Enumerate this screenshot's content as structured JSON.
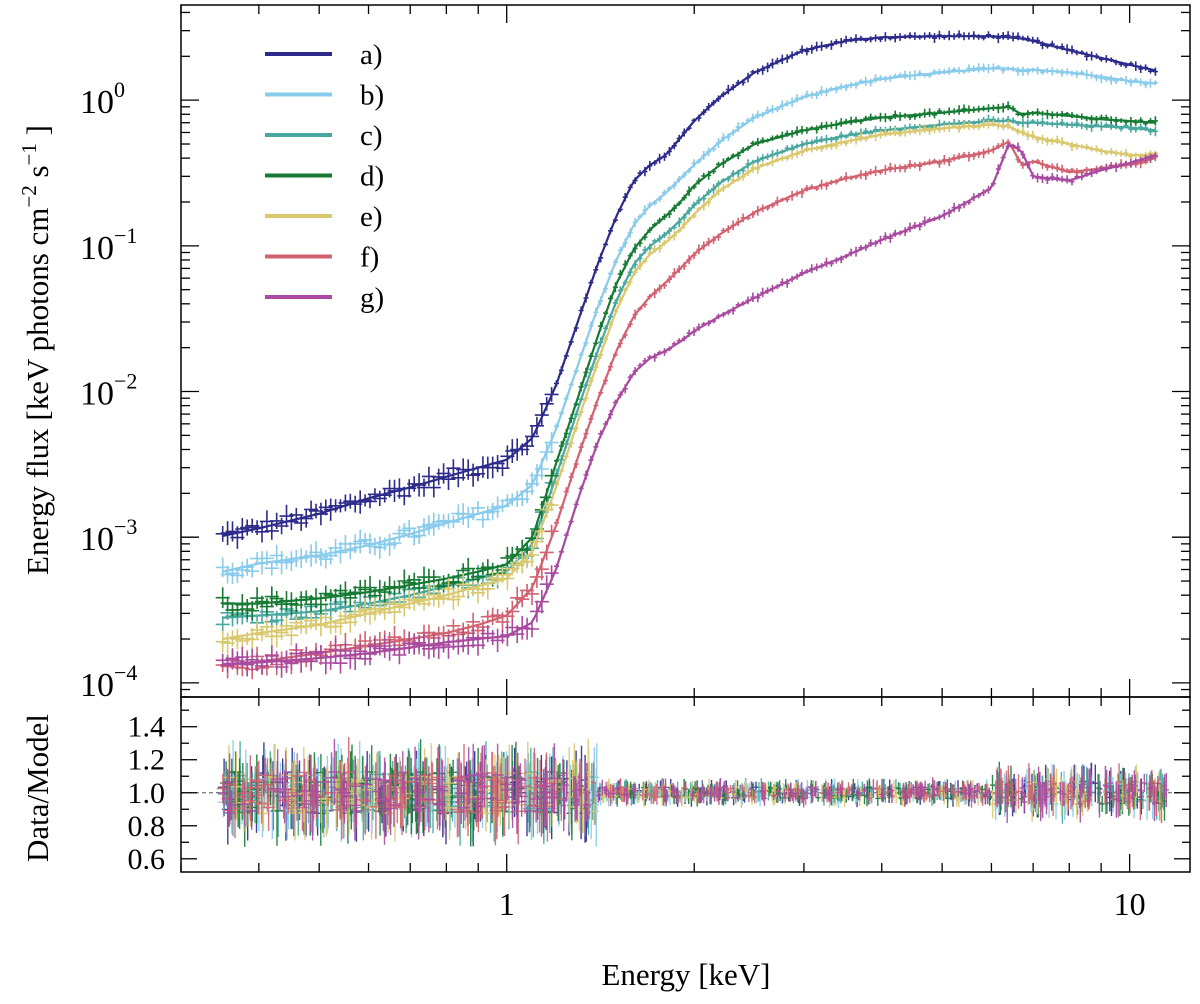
{
  "chart_data": [
    {
      "type": "line",
      "panel": "top",
      "ylabel": "Energy flux [keV photons cm^-2 s^-1 ]",
      "xscale": "log",
      "yscale": "log",
      "xlim": [
        0.3,
        12.5
      ],
      "ylim": [
        8e-05,
        4.5
      ],
      "ytick_labels": [
        {
          "value": 1,
          "mantissa": "10",
          "exponent": "0"
        },
        {
          "value": 0.1,
          "mantissa": "10",
          "exponent": "−1"
        },
        {
          "value": 0.01,
          "mantissa": "10",
          "exponent": "−2"
        },
        {
          "value": 0.001,
          "mantissa": "10",
          "exponent": "−3"
        },
        {
          "value": 0.0001,
          "mantissa": "10",
          "exponent": "−4"
        }
      ],
      "legend_placement": "top-left",
      "x": [
        0.35,
        0.4,
        0.5,
        0.6,
        0.7,
        0.8,
        0.9,
        1.0,
        1.1,
        1.2,
        1.3,
        1.4,
        1.5,
        1.6,
        1.7,
        1.8,
        1.9,
        2.0,
        2.2,
        2.5,
        3.0,
        3.5,
        4.0,
        5.0,
        6.0,
        6.4,
        6.7,
        7.0,
        8.0,
        9.0,
        10.0,
        11.0
      ],
      "series": [
        {
          "name": "a)",
          "color": "#2d2b8a",
          "values": [
            0.00102,
            0.00115,
            0.00145,
            0.00185,
            0.0022,
            0.0026,
            0.003,
            0.0034,
            0.0048,
            0.011,
            0.03,
            0.075,
            0.16,
            0.28,
            0.36,
            0.42,
            0.55,
            0.72,
            1.05,
            1.55,
            2.2,
            2.55,
            2.7,
            2.75,
            2.75,
            2.7,
            2.65,
            2.55,
            2.2,
            1.95,
            1.75,
            1.6
          ]
        },
        {
          "name": "b)",
          "color": "#88cbea",
          "values": [
            0.00058,
            0.00066,
            0.00075,
            0.00088,
            0.00105,
            0.00125,
            0.00145,
            0.00165,
            0.0023,
            0.0055,
            0.015,
            0.038,
            0.08,
            0.14,
            0.19,
            0.23,
            0.29,
            0.36,
            0.52,
            0.76,
            1.05,
            1.25,
            1.4,
            1.55,
            1.65,
            1.65,
            1.6,
            1.62,
            1.55,
            1.45,
            1.35,
            1.3
          ]
        },
        {
          "name": "c)",
          "color": "#48a79f",
          "values": [
            0.00028,
            0.00029,
            0.00031,
            0.00035,
            0.0004,
            0.00046,
            0.00052,
            0.00058,
            0.0009,
            0.0026,
            0.0075,
            0.019,
            0.042,
            0.075,
            0.1,
            0.12,
            0.15,
            0.19,
            0.27,
            0.38,
            0.5,
            0.57,
            0.62,
            0.68,
            0.72,
            0.72,
            0.7,
            0.7,
            0.68,
            0.66,
            0.65,
            0.62
          ]
        },
        {
          "name": "d)",
          "color": "#167a33",
          "values": [
            0.00035,
            0.00035,
            0.00038,
            0.00042,
            0.00047,
            0.00052,
            0.00058,
            0.00065,
            0.001,
            0.0032,
            0.009,
            0.024,
            0.055,
            0.095,
            0.13,
            0.16,
            0.2,
            0.26,
            0.36,
            0.5,
            0.62,
            0.7,
            0.76,
            0.82,
            0.88,
            0.9,
            0.8,
            0.82,
            0.78,
            0.74,
            0.72,
            0.7
          ]
        },
        {
          "name": "e)",
          "color": "#d9c86e",
          "values": [
            0.0002,
            0.00022,
            0.00025,
            0.0003,
            0.00035,
            0.0004,
            0.00046,
            0.00052,
            0.0008,
            0.0022,
            0.0062,
            0.016,
            0.036,
            0.065,
            0.088,
            0.105,
            0.13,
            0.165,
            0.24,
            0.34,
            0.45,
            0.52,
            0.58,
            0.64,
            0.68,
            0.66,
            0.6,
            0.56,
            0.5,
            0.45,
            0.42,
            0.42
          ]
        },
        {
          "name": "f)",
          "color": "#d16270",
          "values": [
            0.00013,
            0.00014,
            0.00016,
            0.00018,
            0.0002,
            0.00022,
            0.00025,
            0.00029,
            0.00045,
            0.0012,
            0.0035,
            0.0088,
            0.019,
            0.033,
            0.045,
            0.056,
            0.07,
            0.088,
            0.12,
            0.17,
            0.24,
            0.29,
            0.33,
            0.38,
            0.45,
            0.52,
            0.36,
            0.38,
            0.32,
            0.34,
            0.36,
            0.4
          ]
        },
        {
          "name": "g)",
          "color": "#a84a9f",
          "values": [
            0.000135,
            0.000138,
            0.000148,
            0.00016,
            0.000175,
            0.00019,
            0.0002,
            0.00021,
            0.00026,
            0.0006,
            0.0018,
            0.0045,
            0.0085,
            0.0135,
            0.017,
            0.019,
            0.022,
            0.026,
            0.033,
            0.044,
            0.065,
            0.085,
            0.11,
            0.16,
            0.25,
            0.5,
            0.45,
            0.3,
            0.28,
            0.33,
            0.37,
            0.42
          ]
        }
      ]
    },
    {
      "type": "scatter",
      "panel": "bottom",
      "xlabel": "Energy [keV]",
      "ylabel": "Data/Model",
      "xscale": "log",
      "xlim": [
        0.3,
        12.5
      ],
      "ylim": [
        0.52,
        1.58
      ],
      "xtick_labels": [
        {
          "value": 1,
          "text": "1"
        },
        {
          "value": 10,
          "text": "10"
        }
      ],
      "ytick_labels": [
        {
          "value": 1.4,
          "text": "1.4"
        },
        {
          "value": 1.2,
          "text": "1.2"
        },
        {
          "value": 1.0,
          "text": "1.0"
        },
        {
          "value": 0.8,
          "text": "0.8"
        },
        {
          "value": 0.6,
          "text": "0.6"
        }
      ],
      "reference_line": 1.0,
      "residual_scatter": [
        {
          "x_range": [
            0.35,
            1.4
          ],
          "amplitude": 0.18
        },
        {
          "x_range": [
            1.4,
            6.0
          ],
          "amplitude": 0.05
        },
        {
          "x_range": [
            6.0,
            11.5
          ],
          "amplitude": 0.1
        }
      ]
    }
  ]
}
